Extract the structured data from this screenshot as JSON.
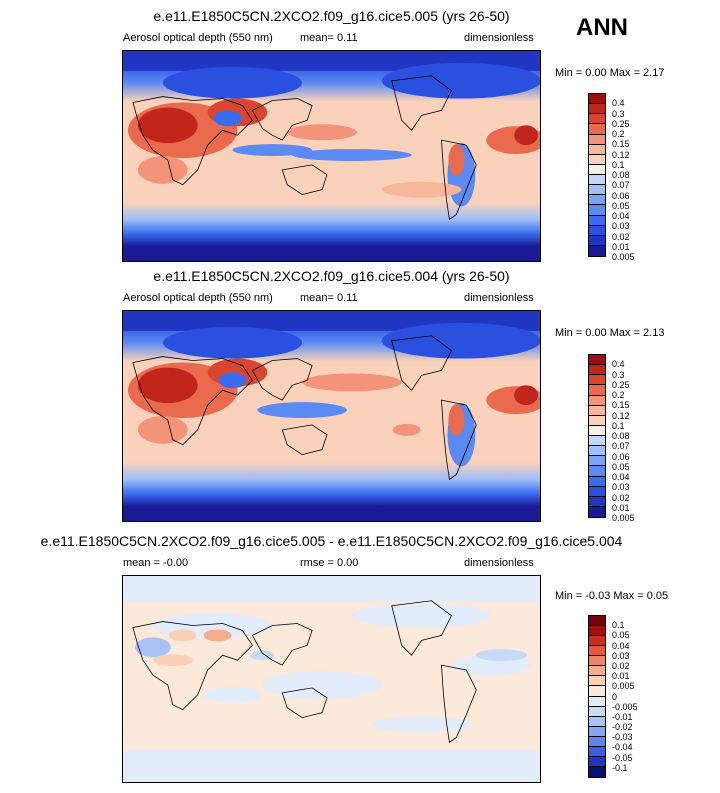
{
  "season": "ANN",
  "colors": {
    "abs": [
      "#1a1a96",
      "#2236c4",
      "#2b50e0",
      "#3a6cf0",
      "#5a8af2",
      "#7aa4f5",
      "#a0c0f8",
      "#c4d8fa",
      "#f7f0e8",
      "#fad2bc",
      "#f8b69a",
      "#f3937a",
      "#ea6a4e",
      "#d9462f",
      "#c0261a",
      "#9c1010"
    ],
    "diff": [
      "#0a1070",
      "#1d34c4",
      "#3a5ce6",
      "#5f84ee",
      "#86a6f2",
      "#a9c2f6",
      "#c8daf9",
      "#e2ecfb",
      "#fbe9dc",
      "#fad0b6",
      "#f5ad8c",
      "#ee8466",
      "#e25a3c",
      "#c8301e",
      "#a01010",
      "#6e0808"
    ]
  },
  "panels": [
    {
      "id": "top",
      "title": "e.e11.E1850C5CN.2XCO2.f09_g16.cice5.005 (yrs 26-50)",
      "left_label": "Aerosol optical depth (550 nm)",
      "mid_label": "mean=  0.11",
      "right_label": "dimensionless",
      "minmax": "Min =  0.00 Max =  2.17",
      "scale": "abs",
      "ticks": [
        "0.4",
        "0.3",
        "0.25",
        "0.2",
        "0.15",
        "0.12",
        "0.1",
        "0.08",
        "0.07",
        "0.06",
        "0.05",
        "0.04",
        "0.03",
        "0.02",
        "0.01",
        "0.005"
      ]
    },
    {
      "id": "middle",
      "title": "e.e11.E1850C5CN.2XCO2.f09_g16.cice5.004 (yrs 26-50)",
      "left_label": "Aerosol optical depth (550 nm)",
      "mid_label": "mean=  0.11",
      "right_label": "dimensionless",
      "minmax": "Min =  0.00 Max =  2.13",
      "scale": "abs",
      "ticks": [
        "0.4",
        "0.3",
        "0.25",
        "0.2",
        "0.15",
        "0.12",
        "0.1",
        "0.08",
        "0.07",
        "0.06",
        "0.05",
        "0.04",
        "0.03",
        "0.02",
        "0.01",
        "0.005"
      ]
    },
    {
      "id": "bottom",
      "title": "e.e11.E1850C5CN.2XCO2.f09_g16.cice5.005 - e.e11.E1850C5CN.2XCO2.f09_g16.cice5.004",
      "left_label": "mean = -0.00",
      "mid_label": "rmse =  0.00",
      "right_label": "dimensionless",
      "minmax": "Min = -0.03 Max =  0.05",
      "scale": "diff",
      "ticks": [
        "0.1",
        "0.05",
        "0.04",
        "0.03",
        "0.02",
        "0.01",
        "0.005",
        "0",
        "-0.005",
        "-0.01",
        "-0.02",
        "-0.03",
        "-0.04",
        "-0.05",
        "-0.1"
      ]
    }
  ]
}
